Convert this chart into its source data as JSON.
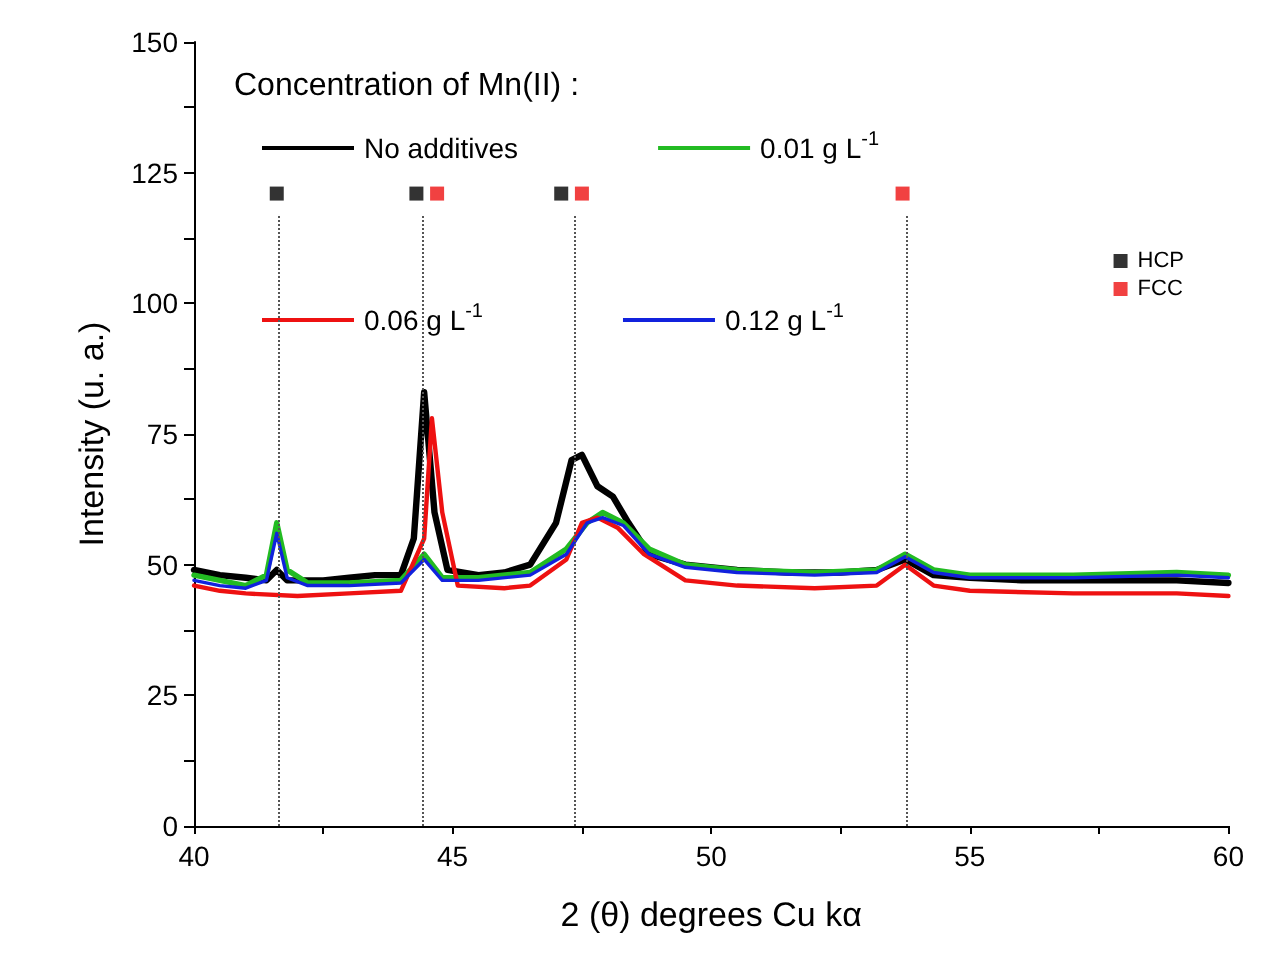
{
  "chart_data": {
    "type": "line",
    "xlabel": "2 (θ) degrees Cu kα",
    "ylabel": "Intensity (u. a.)",
    "legend_title": "Concentration of Mn(II) :",
    "xlim": [
      40,
      60
    ],
    "xticks": [
      40,
      45,
      50,
      55,
      60
    ],
    "ylim": [
      0,
      150
    ],
    "yticks": [
      0,
      25,
      50,
      75,
      100,
      125,
      150
    ],
    "grid": false,
    "legend": "top",
    "marker": "none",
    "line_style": "solid",
    "series": [
      {
        "name": "No additives",
        "color": "#000000",
        "x": [
          40,
          40.5,
          41,
          41.4,
          41.6,
          41.8,
          42.5,
          43,
          43.5,
          44,
          44.25,
          44.45,
          44.65,
          44.9,
          45.5,
          46,
          46.5,
          47,
          47.3,
          47.5,
          47.8,
          48.1,
          48.4,
          48.8,
          49.5,
          50.5,
          51.5,
          52.5,
          53.2,
          53.75,
          54.3,
          55,
          56,
          57,
          58,
          59,
          60
        ],
        "values": [
          49,
          48,
          47.5,
          47,
          49,
          47,
          47,
          47.5,
          48,
          48,
          55,
          83,
          60,
          49,
          48,
          48.5,
          50,
          58,
          70,
          71,
          65,
          63,
          58,
          52,
          50,
          49,
          48.5,
          48.5,
          49,
          51,
          48,
          47.5,
          47,
          47,
          47,
          47,
          46.5
        ]
      },
      {
        "name": "0.01 g L$^{-1}$",
        "color": "#22bb22",
        "x": [
          40,
          40.5,
          41,
          41.4,
          41.6,
          41.8,
          42.2,
          43,
          44,
          44.45,
          44.8,
          45.5,
          46.5,
          47.2,
          47.6,
          47.9,
          48.3,
          48.8,
          49.5,
          50.5,
          52,
          53.2,
          53.75,
          54.3,
          55,
          57,
          59,
          60
        ],
        "values": [
          48,
          47,
          46,
          48,
          58,
          49,
          46.5,
          46.5,
          47,
          52,
          47.5,
          47.5,
          48.5,
          53,
          58,
          60,
          58,
          53,
          50,
          49,
          48.5,
          49,
          52,
          49,
          48,
          48,
          48.5,
          48
        ]
      },
      {
        "name": "0.06 g L$^{-1}$",
        "color": "#ee1111",
        "x": [
          40,
          40.5,
          41,
          42,
          43,
          44,
          44.45,
          44.6,
          44.8,
          45.1,
          46,
          46.5,
          47.2,
          47.5,
          47.8,
          48.2,
          48.7,
          49.5,
          50.5,
          52,
          53.2,
          53.75,
          54.3,
          55,
          57,
          59,
          60
        ],
        "values": [
          46,
          45,
          44.5,
          44,
          44.5,
          45,
          55,
          78,
          60,
          46,
          45.5,
          46,
          51,
          58,
          59,
          57,
          52,
          47,
          46,
          45.5,
          46,
          50,
          46,
          45,
          44.5,
          44.5,
          44
        ]
      },
      {
        "name": "0.12 g L$^{-1}$",
        "color": "#1122dd",
        "x": [
          40,
          40.5,
          41,
          41.4,
          41.6,
          41.8,
          42.2,
          43,
          44,
          44.45,
          44.8,
          45.5,
          46.5,
          47.2,
          47.6,
          47.9,
          48.3,
          48.8,
          49.5,
          50.5,
          52,
          53.2,
          53.75,
          54.3,
          55,
          57,
          59,
          60
        ],
        "values": [
          47,
          46,
          45.5,
          47,
          56,
          47.5,
          46,
          46,
          46.5,
          51,
          47,
          47,
          48,
          52,
          58,
          59,
          57.5,
          52,
          49.5,
          48.5,
          48,
          48.5,
          51.5,
          48.5,
          47.5,
          47.5,
          48,
          47.5
        ]
      },
      {
        "name": "HCP",
        "type": "scatter",
        "marker": "square",
        "color": "#000000",
        "x": [
          41.6,
          44.3,
          47.1
        ],
        "values": [
          121,
          121,
          121
        ]
      },
      {
        "name": "FCC",
        "type": "scatter",
        "marker": "square",
        "color": "#ee1111",
        "x": [
          44.7,
          47.5,
          53.7
        ],
        "values": [
          121,
          121,
          121
        ]
      }
    ],
    "ref_lines": [
      {
        "axis": "x",
        "value": 41.65,
        "line_style": "dotted",
        "color": "#555555"
      },
      {
        "axis": "x",
        "value": 44.42,
        "line_style": "dotted",
        "color": "#555555"
      },
      {
        "axis": "x",
        "value": 47.37,
        "line_style": "dotted",
        "color": "#555555"
      },
      {
        "axis": "x",
        "value": 53.78,
        "line_style": "dotted",
        "color": "#555555"
      }
    ]
  }
}
